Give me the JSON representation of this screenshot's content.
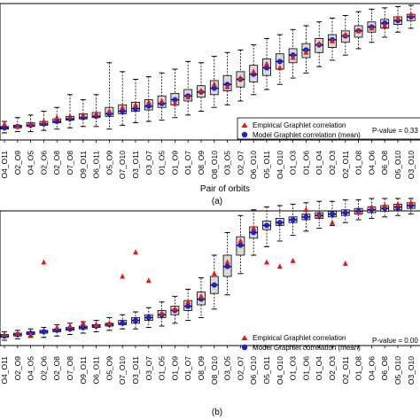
{
  "chart_data": [
    {
      "type": "box",
      "panel_label": "(a)",
      "xlabel": "Pair of orbits",
      "ylim": [
        0,
        1
      ],
      "categories": [
        "O4_O11",
        "O2_O9",
        "O4_O5",
        "O2_O6",
        "O2_O8",
        "O7_O8",
        "O9_O11",
        "O6_O11",
        "O5_O9",
        "O7_O10",
        "O3_O11",
        "O3_O7",
        "O1_O5",
        "O1_O9",
        "O1_O7",
        "O8_O9",
        "O8_O10",
        "O3_O5",
        "O2_O7",
        "O6_O10",
        "O5_O11",
        "O4_O10",
        "O1_O3",
        "O1_O6",
        "O1_O4",
        "O2_O3",
        "O2_O11",
        "O1_O8",
        "O4_O6",
        "O6_O8",
        "O5_O10",
        "O3_O10"
      ],
      "box_q1": [
        0.03,
        0.04,
        0.05,
        0.06,
        0.08,
        0.1,
        0.11,
        0.12,
        0.13,
        0.15,
        0.17,
        0.18,
        0.2,
        0.22,
        0.25,
        0.28,
        0.3,
        0.33,
        0.36,
        0.4,
        0.45,
        0.5,
        0.55,
        0.59,
        0.63,
        0.67,
        0.71,
        0.75,
        0.79,
        0.82,
        0.85,
        0.88
      ],
      "box_median": [
        0.04,
        0.05,
        0.06,
        0.07,
        0.09,
        0.11,
        0.12,
        0.13,
        0.15,
        0.17,
        0.19,
        0.21,
        0.23,
        0.26,
        0.29,
        0.32,
        0.35,
        0.38,
        0.42,
        0.46,
        0.51,
        0.56,
        0.61,
        0.65,
        0.69,
        0.73,
        0.76,
        0.8,
        0.83,
        0.86,
        0.88,
        0.91
      ],
      "box_q3": [
        0.05,
        0.06,
        0.08,
        0.09,
        0.11,
        0.13,
        0.15,
        0.16,
        0.2,
        0.22,
        0.24,
        0.26,
        0.29,
        0.31,
        0.34,
        0.37,
        0.41,
        0.45,
        0.48,
        0.53,
        0.58,
        0.62,
        0.66,
        0.7,
        0.74,
        0.77,
        0.8,
        0.84,
        0.87,
        0.89,
        0.91,
        0.93
      ],
      "whisker_low": [
        0.0,
        0.01,
        0.01,
        0.02,
        0.03,
        0.04,
        0.05,
        0.05,
        0.03,
        0.06,
        0.08,
        0.09,
        0.1,
        0.12,
        0.14,
        0.17,
        0.2,
        0.22,
        0.25,
        0.3,
        0.34,
        0.38,
        0.43,
        0.47,
        0.52,
        0.57,
        0.61,
        0.66,
        0.71,
        0.75,
        0.79,
        0.82
      ],
      "whisker_high": [
        0.09,
        0.12,
        0.14,
        0.17,
        0.2,
        0.3,
        0.26,
        0.3,
        0.55,
        0.48,
        0.42,
        0.44,
        0.47,
        0.5,
        0.56,
        0.55,
        0.6,
        0.63,
        0.65,
        0.69,
        0.74,
        0.77,
        0.81,
        0.84,
        0.87,
        0.9,
        0.92,
        0.95,
        0.97,
        0.98,
        0.99,
        1.0
      ],
      "series": [
        {
          "name": "Empirical Graphlet correlation",
          "marker": "triangle",
          "color": "#e31a1c",
          "values": [
            0.07,
            0.05,
            0.07,
            0.09,
            0.12,
            0.13,
            0.14,
            0.15,
            0.17,
            0.2,
            0.22,
            0.24,
            0.25,
            0.23,
            0.28,
            0.33,
            0.38,
            0.36,
            0.43,
            0.48,
            0.54,
            0.51,
            0.59,
            0.63,
            0.7,
            0.72,
            0.77,
            0.8,
            0.82,
            0.84,
            0.9,
            0.93
          ]
        },
        {
          "name": "Model Graphlet correlation (mean)",
          "marker": "circle",
          "color": "#1f1fd6",
          "values": [
            0.04,
            0.05,
            0.06,
            0.07,
            0.09,
            0.11,
            0.12,
            0.13,
            0.15,
            0.17,
            0.19,
            0.21,
            0.23,
            0.26,
            0.29,
            0.32,
            0.35,
            0.38,
            0.42,
            0.46,
            0.51,
            0.56,
            0.61,
            0.65,
            0.69,
            0.73,
            0.76,
            0.8,
            0.83,
            0.86,
            0.88,
            0.91
          ]
        }
      ],
      "pvalue_text": "P-value = 0.33",
      "legend_position": "bottom-right"
    },
    {
      "type": "box",
      "panel_label": "(b)",
      "xlabel": "",
      "ylim": [
        0,
        1
      ],
      "categories": [
        "O4_O11",
        "O2_O9",
        "O4_O5",
        "O2_O6",
        "O2_O8",
        "O7_O8",
        "O9_O11",
        "O6_O11",
        "O5_O9",
        "O7_O10",
        "O3_O11",
        "O3_O7",
        "O1_O5",
        "O1_O9",
        "O1_O7",
        "O8_O9",
        "O8_O10",
        "O3_O5",
        "O2_O7",
        "O6_O10",
        "O5_O11",
        "O4_O10",
        "O1_O3",
        "O1_O6",
        "O1_O4",
        "O2_O3",
        "O2_O11",
        "O1_O8",
        "O4_O6",
        "O6_O8",
        "O5_O10",
        "O3_O10"
      ],
      "box_q1": [
        0.02,
        0.03,
        0.04,
        0.05,
        0.06,
        0.07,
        0.08,
        0.09,
        0.1,
        0.11,
        0.12,
        0.14,
        0.16,
        0.18,
        0.21,
        0.25,
        0.33,
        0.45,
        0.6,
        0.72,
        0.78,
        0.81,
        0.83,
        0.85,
        0.86,
        0.87,
        0.88,
        0.89,
        0.9,
        0.91,
        0.92,
        0.93
      ],
      "box_median": [
        0.03,
        0.04,
        0.05,
        0.06,
        0.07,
        0.08,
        0.09,
        0.1,
        0.11,
        0.12,
        0.14,
        0.16,
        0.18,
        0.21,
        0.24,
        0.29,
        0.39,
        0.52,
        0.67,
        0.76,
        0.81,
        0.83,
        0.85,
        0.87,
        0.88,
        0.89,
        0.9,
        0.91,
        0.92,
        0.93,
        0.94,
        0.95
      ],
      "box_q3": [
        0.04,
        0.05,
        0.06,
        0.07,
        0.08,
        0.09,
        0.1,
        0.11,
        0.12,
        0.14,
        0.16,
        0.18,
        0.21,
        0.24,
        0.28,
        0.34,
        0.45,
        0.6,
        0.73,
        0.8,
        0.84,
        0.86,
        0.87,
        0.89,
        0.9,
        0.91,
        0.92,
        0.93,
        0.94,
        0.95,
        0.96,
        0.97
      ],
      "whisker_low": [
        0.0,
        0.01,
        0.02,
        0.02,
        0.03,
        0.04,
        0.05,
        0.06,
        0.07,
        0.08,
        0.08,
        0.09,
        0.1,
        0.12,
        0.14,
        0.16,
        0.22,
        0.32,
        0.47,
        0.6,
        0.66,
        0.7,
        0.74,
        0.77,
        0.79,
        0.81,
        0.83,
        0.85,
        0.86,
        0.87,
        0.88,
        0.89
      ],
      "whisker_high": [
        0.06,
        0.07,
        0.08,
        0.09,
        0.11,
        0.12,
        0.13,
        0.14,
        0.16,
        0.18,
        0.2,
        0.23,
        0.27,
        0.31,
        0.36,
        0.44,
        0.6,
        0.76,
        0.88,
        0.92,
        0.94,
        0.95,
        0.96,
        0.97,
        0.98,
        0.98,
        0.99,
        0.99,
        1.0,
        1.0,
        1.0,
        1.0
      ],
      "series": [
        {
          "name": "Empirical Graphlet correlation",
          "marker": "triangle",
          "color": "#e31a1c",
          "values": [
            0.04,
            0.05,
            0.04,
            0.55,
            0.09,
            0.1,
            0.12,
            0.11,
            0.12,
            0.45,
            0.62,
            0.42,
            0.19,
            0.22,
            0.27,
            0.31,
            0.47,
            0.55,
            0.7,
            0.79,
            0.55,
            0.52,
            0.56,
            0.92,
            0.88,
            0.83,
            0.54,
            0.9,
            0.94,
            0.95,
            0.96,
            0.97
          ]
        },
        {
          "name": "Model Graphlet correlation (mean)",
          "marker": "circle",
          "color": "#1f1fd6",
          "values": [
            0.03,
            0.04,
            0.05,
            0.06,
            0.07,
            0.08,
            0.09,
            0.1,
            0.11,
            0.12,
            0.14,
            0.16,
            0.18,
            0.21,
            0.24,
            0.29,
            0.39,
            0.52,
            0.67,
            0.76,
            0.81,
            0.83,
            0.85,
            0.87,
            0.88,
            0.89,
            0.9,
            0.91,
            0.92,
            0.93,
            0.94,
            0.95
          ]
        }
      ],
      "pvalue_text": "P-value = 0.00",
      "legend_position": "bottom-right"
    }
  ]
}
